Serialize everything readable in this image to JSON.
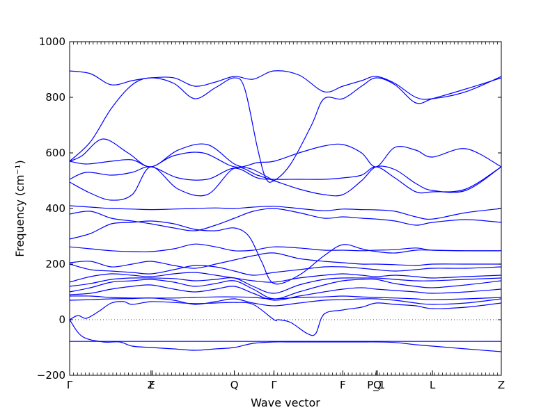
{
  "chart_data": {
    "type": "line",
    "title": "",
    "xlabel": "Wave vector",
    "ylabel": "Frequency (cm⁻¹)",
    "ylim": [
      -200,
      1000
    ],
    "yticks": [
      -200,
      0,
      200,
      400,
      600,
      800,
      1000
    ],
    "ytick_labels": [
      "−200",
      "0",
      "200",
      "400",
      "600",
      "800",
      "1000"
    ],
    "xlim": [
      0,
      10.35
    ],
    "high_symmetry_points": [
      {
        "label": "Γ",
        "x": 0
      },
      {
        "label": "Z",
        "x": 1.95
      },
      {
        "label": "F",
        "x": 1.98
      },
      {
        "label": "Q",
        "x": 3.95
      },
      {
        "label": "Γ",
        "x": 4.9
      },
      {
        "label": "F",
        "x": 6.55
      },
      {
        "label": "P_1",
        "x": 7.35
      },
      {
        "label": "Q",
        "x": 7.38
      },
      {
        "label": "L",
        "x": 8.7
      },
      {
        "label": "Z",
        "x": 10.35
      }
    ],
    "zero_line": true,
    "line_color": "#0000ff",
    "series": [
      {
        "x": [
          0,
          0.5,
          1,
          1.5,
          1.95,
          2.5,
          3,
          3.5,
          3.95,
          4.4,
          4.9,
          5.5,
          6.1,
          6.55,
          7,
          7.35,
          7.8,
          8.3,
          8.7,
          9.5,
          10.35
        ],
        "values": [
          895,
          885,
          845,
          860,
          870,
          870,
          840,
          855,
          875,
          865,
          895,
          880,
          820,
          840,
          860,
          875,
          850,
          800,
          795,
          820,
          875
        ]
      },
      {
        "x": [
          0,
          0.5,
          1,
          1.5,
          1.95,
          2.5,
          3,
          3.5,
          3.95,
          4.2,
          4.5,
          4.7,
          4.9,
          5.3,
          5.8,
          6.1,
          6.55,
          7,
          7.35,
          7.8,
          8.3,
          8.7,
          9.5,
          10.35
        ],
        "values": [
          570,
          640,
          760,
          845,
          870,
          850,
          795,
          835,
          870,
          830,
          620,
          510,
          500,
          560,
          700,
          795,
          795,
          840,
          870,
          845,
          780,
          795,
          830,
          870
        ]
      },
      {
        "x": [
          0,
          0.3,
          0.8,
          1.4,
          1.95,
          2.6,
          3.3,
          3.95,
          4.4,
          4.9
        ],
        "values": [
          570,
          590,
          650,
          600,
          550,
          610,
          630,
          560,
          540,
          500
        ]
      },
      {
        "x": [
          0,
          0.4,
          1,
          1.5,
          1.95,
          2.5,
          3.2,
          3.95,
          4.5,
          4.9,
          5.5,
          6.1,
          6.55,
          7,
          7.35,
          7.8,
          8.3,
          8.7,
          9.5,
          10.35
        ],
        "values": [
          570,
          560,
          570,
          575,
          550,
          590,
          600,
          550,
          565,
          570,
          600,
          625,
          630,
          600,
          550,
          620,
          610,
          585,
          615,
          550
        ]
      },
      {
        "x": [
          0,
          0.4,
          1,
          1.5,
          1.95,
          2.6,
          3.3,
          3.95,
          4.5,
          4.9,
          5.5,
          6.1,
          6.55,
          7,
          7.35,
          7.8,
          8.3,
          8.7,
          9.5,
          10.35
        ],
        "values": [
          505,
          530,
          520,
          530,
          550,
          510,
          505,
          545,
          510,
          505,
          505,
          505,
          510,
          520,
          550,
          510,
          460,
          460,
          470,
          550
        ]
      },
      {
        "x": [
          0,
          0.5,
          1,
          1.5,
          1.95,
          2.6,
          3.3,
          3.95,
          4.5,
          4.9,
          5.5,
          6.1,
          6.55,
          7,
          7.35,
          7.8,
          8.3,
          8.7,
          9.5,
          10.35
        ],
        "values": [
          495,
          455,
          430,
          450,
          550,
          470,
          450,
          545,
          520,
          500,
          470,
          450,
          450,
          500,
          550,
          540,
          490,
          465,
          465,
          550
        ]
      },
      {
        "x": [
          0,
          0.5,
          1,
          1.5,
          1.95,
          2.5,
          3,
          3.5,
          3.95,
          4.4,
          4.9,
          5.5,
          6.1,
          6.55,
          7,
          7.35,
          7.8,
          8.3,
          8.7,
          9.5,
          10.35
        ],
        "values": [
          410,
          405,
          400,
          398,
          396,
          398,
          400,
          402,
          400,
          405,
          408,
          400,
          392,
          398,
          396,
          395,
          390,
          370,
          362,
          385,
          400
        ]
      },
      {
        "x": [
          0,
          0.5,
          1,
          1.5,
          1.95,
          2.5,
          3,
          3.5,
          3.95,
          4.4,
          4.9,
          5.5,
          6.1,
          6.55,
          7,
          7.35,
          7.8,
          8.3,
          8.7,
          9.5,
          10.35
        ],
        "values": [
          380,
          390,
          365,
          355,
          345,
          330,
          320,
          340,
          365,
          390,
          400,
          385,
          365,
          370,
          365,
          362,
          355,
          340,
          350,
          360,
          350
        ]
      },
      {
        "x": [
          0,
          0.5,
          1,
          1.5,
          1.95,
          2.5,
          3,
          3.5,
          3.95,
          4.3,
          4.6,
          4.9,
          5.5,
          6.1,
          6.55,
          7,
          7.35,
          7.8,
          8.3,
          8.7,
          9.5,
          10.35
        ],
        "values": [
          290,
          310,
          345,
          350,
          355,
          345,
          325,
          320,
          330,
          300,
          210,
          130,
          160,
          230,
          270,
          255,
          245,
          240,
          250,
          250,
          248,
          248
        ]
      },
      {
        "x": [
          0,
          0.5,
          1,
          1.5,
          1.95,
          2.5,
          3,
          3.5,
          3.95,
          4.4,
          4.9,
          5.5,
          6.1,
          6.55,
          7,
          7.35,
          7.8,
          8.3,
          8.7,
          9.5,
          10.35
        ],
        "values": [
          262,
          255,
          248,
          245,
          245,
          255,
          272,
          262,
          248,
          250,
          262,
          258,
          250,
          250,
          248,
          250,
          252,
          258,
          250,
          248,
          248
        ]
      },
      {
        "x": [
          0,
          0.5,
          1,
          1.5,
          1.95,
          2.5,
          3,
          3.5,
          3.95,
          4.4,
          4.9,
          5.5,
          6.1,
          6.55,
          7,
          7.35,
          7.8,
          8.3,
          8.7,
          9.5,
          10.35
        ],
        "values": [
          205,
          210,
          190,
          200,
          210,
          195,
          185,
          200,
          215,
          230,
          240,
          220,
          210,
          205,
          200,
          200,
          198,
          195,
          200,
          200,
          200
        ]
      },
      {
        "x": [
          0,
          0.5,
          1,
          1.5,
          1.95,
          2.5,
          3,
          3.5,
          3.95,
          4.4,
          4.9,
          5.5,
          6.1,
          6.55,
          7,
          7.35,
          7.8,
          8.3,
          8.7,
          9.5,
          10.35
        ],
        "values": [
          200,
          180,
          175,
          170,
          165,
          180,
          195,
          190,
          175,
          160,
          170,
          180,
          190,
          190,
          185,
          180,
          175,
          180,
          185,
          185,
          190
        ]
      },
      {
        "x": [
          0,
          0.5,
          1,
          1.5,
          1.95,
          2.5,
          3,
          3.5,
          3.95,
          4.4,
          4.9,
          5.5,
          6.1,
          6.55,
          7,
          7.35,
          7.8,
          8.3,
          8.7,
          9.5,
          10.35
        ],
        "values": [
          135,
          155,
          165,
          160,
          155,
          165,
          170,
          160,
          150,
          140,
          135,
          150,
          160,
          165,
          160,
          155,
          160,
          155,
          150,
          155,
          160
        ]
      },
      {
        "x": [
          0,
          0.5,
          1,
          1.5,
          1.95,
          2.5,
          3,
          3.5,
          3.95,
          4.4,
          4.9,
          5.5,
          6.1,
          6.55,
          7,
          7.35,
          7.8,
          8.3,
          8.7,
          9.5,
          10.35
        ],
        "values": [
          120,
          130,
          145,
          150,
          150,
          148,
          140,
          145,
          150,
          120,
          95,
          125,
          145,
          150,
          150,
          150,
          145,
          140,
          140,
          145,
          150
        ]
      },
      {
        "x": [
          0,
          0.5,
          1,
          1.5,
          1.95,
          2.5,
          3,
          3.5,
          3.95,
          4.4,
          4.9,
          5.5,
          6.1,
          6.55,
          7,
          7.35,
          7.8,
          8.3,
          8.7,
          9.5,
          10.35
        ],
        "values": [
          100,
          115,
          135,
          140,
          145,
          135,
          120,
          130,
          140,
          110,
          75,
          100,
          125,
          140,
          145,
          145,
          130,
          120,
          115,
          125,
          140
        ]
      },
      {
        "x": [
          0,
          0.5,
          1,
          1.5,
          1.95,
          2.5,
          3,
          3.5,
          3.95,
          4.4,
          4.9,
          5.5,
          6.1,
          6.55,
          7,
          7.35,
          7.8,
          8.3,
          8.7,
          9.5,
          10.35
        ],
        "values": [
          90,
          95,
          110,
          120,
          125,
          110,
          100,
          110,
          120,
          95,
          70,
          85,
          100,
          110,
          115,
          110,
          105,
          100,
          95,
          100,
          110
        ]
      },
      {
        "x": [
          0,
          0.5,
          1,
          1.5,
          1.95,
          2.5,
          3,
          3.5,
          3.95,
          4.4,
          4.9,
          5.5,
          6.1,
          6.55,
          7,
          7.35,
          7.8,
          8.3,
          8.7,
          9.5,
          10.35
        ],
        "values": [
          85,
          85,
          80,
          78,
          78,
          78,
          80,
          82,
          82,
          80,
          75,
          80,
          82,
          85,
          82,
          80,
          78,
          75,
          72,
          75,
          80
        ]
      },
      {
        "x": [
          0,
          0.5,
          1,
          1.5,
          1.95,
          2.5,
          3,
          3.5,
          3.95,
          4.4,
          4.9,
          5.5,
          6.1,
          6.55,
          7,
          7.35,
          7.8,
          8.3,
          8.7,
          9.5,
          10.35
        ],
        "values": [
          70,
          72,
          75,
          76,
          78,
          70,
          55,
          65,
          75,
          60,
          50,
          60,
          70,
          72,
          75,
          75,
          70,
          60,
          55,
          60,
          75
        ]
      },
      {
        "x": [
          0,
          0.2,
          0.4,
          0.7,
          1,
          1.3,
          1.5,
          1.95,
          2.5,
          3,
          3.5,
          3.95,
          4.4,
          4.9,
          5.0,
          5.3,
          5.7,
          5.9,
          6.1,
          6.55,
          7,
          7.35,
          7.8,
          8.3,
          8.7,
          9.5,
          10.35
        ],
        "values": [
          0,
          15,
          5,
          30,
          60,
          65,
          55,
          65,
          62,
          58,
          60,
          62,
          55,
          0,
          0,
          -10,
          -50,
          -50,
          20,
          35,
          45,
          60,
          55,
          50,
          40,
          45,
          60
        ]
      },
      {
        "x": [
          0,
          0.3,
          0.8,
          1.2,
          1.5,
          1.95,
          2.5,
          3,
          3.5,
          3.95,
          4.4,
          4.9,
          5.2,
          5.5,
          5.8,
          6.1,
          6.55,
          7,
          7.35,
          7.8,
          8.3,
          8.7,
          9.5,
          10.35
        ],
        "values": [
          0,
          -60,
          -80,
          -80,
          -95,
          -100,
          -105,
          -110,
          -105,
          -100,
          -85,
          -80,
          -80,
          -80,
          -80,
          -80,
          -80,
          -80,
          -80,
          -82,
          -90,
          -95,
          -105,
          -115
        ]
      },
      {
        "x": [
          0,
          1,
          1.95,
          3,
          3.95,
          4.9,
          6,
          7,
          8,
          8.7,
          9.5,
          10.35
        ],
        "values": [
          -78,
          -78,
          -78,
          -78,
          -78,
          -78,
          -78,
          -78,
          -78,
          -78,
          -78,
          -78
        ]
      }
    ]
  }
}
